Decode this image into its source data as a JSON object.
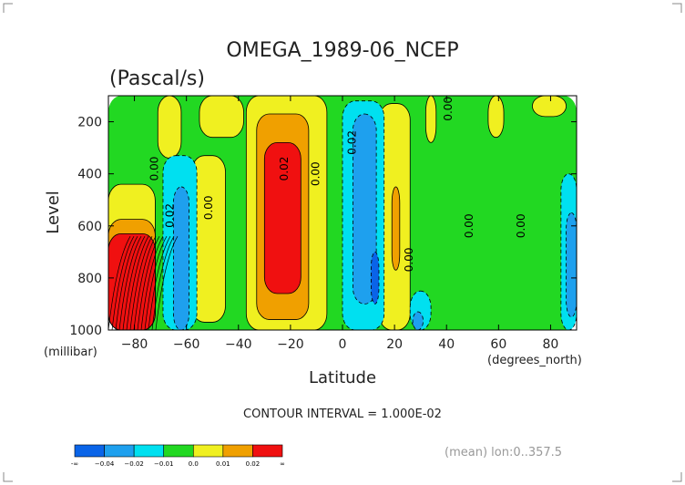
{
  "chart_data": {
    "type": "heatmap",
    "title": "OMEGA_1989-06_NCEP",
    "subtitle": "(Pascal/s)",
    "xlabel": "Latitude",
    "ylabel": "Level",
    "x_unit": "(degrees_north)",
    "y_unit": "(millibar)",
    "xlim": [
      -90,
      90
    ],
    "ylim": [
      1000,
      100
    ],
    "x_ticks": [
      -80,
      -60,
      -40,
      -20,
      0,
      20,
      40,
      60,
      80
    ],
    "y_ticks": [
      200,
      400,
      600,
      800,
      1000
    ],
    "contour_interval_text": "CONTOUR INTERVAL = 1.000E-02",
    "footnote": "(mean) lon:0..357.5",
    "colorbar": {
      "colors": [
        "#0a64e8",
        "#1ea0ee",
        "#00e0f0",
        "#22d822",
        "#f0f020",
        "#f0a000",
        "#f01010"
      ],
      "labels": [
        "-∞",
        "−0.04",
        "−0.02",
        "−0.01",
        "0.0",
        "0.01",
        "0.02",
        "∞"
      ]
    },
    "regions": [
      {
        "level": 0.0,
        "color": "#22d822",
        "lat": [
          -90,
          90
        ],
        "p": [
          100,
          1000
        ]
      },
      {
        "level": 0.005,
        "color": "#f0f020",
        "lat": [
          -90,
          -72
        ],
        "p": [
          440,
          1000
        ]
      },
      {
        "level": 0.005,
        "color": "#f0f020",
        "lat": [
          -71,
          -62
        ],
        "p": [
          100,
          340
        ]
      },
      {
        "level": 0.005,
        "color": "#f0f020",
        "lat": [
          -58,
          -45
        ],
        "p": [
          330,
          970
        ]
      },
      {
        "level": 0.005,
        "color": "#f0f020",
        "lat": [
          -37,
          -6
        ],
        "p": [
          100,
          1000
        ]
      },
      {
        "level": 0.005,
        "color": "#f0f020",
        "lat": [
          -55,
          -38
        ],
        "p": [
          100,
          260
        ]
      },
      {
        "level": 0.005,
        "color": "#f0f020",
        "lat": [
          14,
          26
        ],
        "p": [
          130,
          1000
        ]
      },
      {
        "level": 0.005,
        "color": "#f0f020",
        "lat": [
          32,
          36
        ],
        "p": [
          100,
          280
        ]
      },
      {
        "level": 0.005,
        "color": "#f0f020",
        "lat": [
          56,
          62
        ],
        "p": [
          100,
          260
        ]
      },
      {
        "level": 0.005,
        "color": "#f0f020",
        "lat": [
          73,
          86
        ],
        "p": [
          100,
          180
        ]
      },
      {
        "level": 0.015,
        "color": "#f0a000",
        "lat": [
          -90,
          -72
        ],
        "p": [
          575,
          1000
        ]
      },
      {
        "level": 0.015,
        "color": "#f0a000",
        "lat": [
          -33,
          -13
        ],
        "p": [
          170,
          960
        ]
      },
      {
        "level": 0.015,
        "color": "#f0a000",
        "lat": [
          19,
          22
        ],
        "p": [
          450,
          770
        ]
      },
      {
        "level": 0.025,
        "color": "#f01010",
        "lat": [
          -90,
          -72
        ],
        "p": [
          630,
          1000
        ]
      },
      {
        "level": 0.025,
        "color": "#f01010",
        "lat": [
          -30,
          -16
        ],
        "p": [
          280,
          860
        ]
      },
      {
        "level": -0.015,
        "color": "#00e0f0",
        "lat": [
          -69,
          -56
        ],
        "p": [
          330,
          1000
        ]
      },
      {
        "level": -0.015,
        "color": "#00e0f0",
        "lat": [
          0,
          16
        ],
        "p": [
          120,
          1000
        ]
      },
      {
        "level": -0.015,
        "color": "#00e0f0",
        "lat": [
          26,
          34
        ],
        "p": [
          850,
          1000
        ]
      },
      {
        "level": -0.015,
        "color": "#00e0f0",
        "lat": [
          84,
          90
        ],
        "p": [
          400,
          1000
        ]
      },
      {
        "level": -0.03,
        "color": "#1ea0ee",
        "lat": [
          -65,
          -59
        ],
        "p": [
          450,
          1000
        ]
      },
      {
        "level": -0.03,
        "color": "#1ea0ee",
        "lat": [
          4,
          13
        ],
        "p": [
          170,
          900
        ]
      },
      {
        "level": -0.03,
        "color": "#1ea0ee",
        "lat": [
          27,
          31
        ],
        "p": [
          930,
          1000
        ]
      },
      {
        "level": -0.03,
        "color": "#1ea0ee",
        "lat": [
          86,
          90
        ],
        "p": [
          550,
          950
        ]
      },
      {
        "level": -0.045,
        "color": "#0a64e8",
        "lat": [
          11,
          14
        ],
        "p": [
          700,
          900
        ]
      }
    ],
    "contour_labels": [
      {
        "text": "0.00",
        "lat": -71,
        "p": 380
      },
      {
        "text": "0.02",
        "lat": -65,
        "p": 560
      },
      {
        "text": "0.00",
        "lat": -50,
        "p": 530
      },
      {
        "text": "0.02",
        "lat": -21,
        "p": 380
      },
      {
        "text": "0.00",
        "lat": -9,
        "p": 400
      },
      {
        "text": "0.02",
        "lat": 5,
        "p": 280
      },
      {
        "text": "0.00",
        "lat": 27,
        "p": 730
      },
      {
        "text": "0.00",
        "lat": 42,
        "p": 150
      },
      {
        "text": "0.00",
        "lat": 50,
        "p": 600
      },
      {
        "text": "0.00",
        "lat": 70,
        "p": 600
      }
    ]
  }
}
